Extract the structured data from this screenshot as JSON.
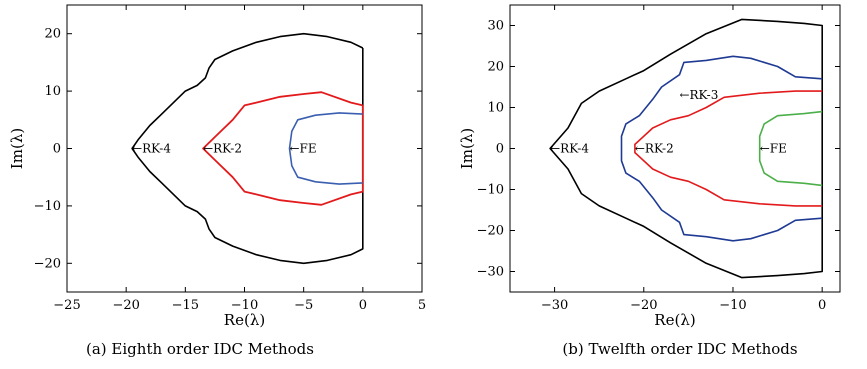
{
  "chart_data": [
    {
      "type": "line",
      "caption": "(a) Eighth order IDC Methods",
      "xlabel": "Re(λ)",
      "ylabel": "Im(λ)",
      "xlim": [
        -25,
        5
      ],
      "ylim": [
        -25,
        25
      ],
      "xticks": [
        -25,
        -20,
        -15,
        -10,
        -5,
        0,
        5
      ],
      "yticks": [
        -20,
        -10,
        0,
        10,
        20
      ],
      "grid": false,
      "series": [
        {
          "name": "RK-4",
          "color": "#000000",
          "points": [
            [
              0,
              17.5
            ],
            [
              -1,
              18.5
            ],
            [
              -3,
              19.5
            ],
            [
              -5,
              20
            ],
            [
              -7,
              19.5
            ],
            [
              -9,
              18.5
            ],
            [
              -11,
              17
            ],
            [
              -12.5,
              15.5
            ],
            [
              -13,
              14
            ],
            [
              -13.3,
              12.3
            ],
            [
              -14,
              11
            ],
            [
              -15,
              10
            ],
            [
              -16,
              8
            ],
            [
              -17,
              6
            ],
            [
              -18,
              4
            ],
            [
              -19,
              1.5
            ],
            [
              -19.5,
              0
            ],
            [
              -19,
              -1.5
            ],
            [
              -18,
              -4
            ],
            [
              -17,
              -6
            ],
            [
              -16,
              -8
            ],
            [
              -15,
              -10
            ],
            [
              -14,
              -11
            ],
            [
              -13.3,
              -12.3
            ],
            [
              -13,
              -14
            ],
            [
              -12.5,
              -15.5
            ],
            [
              -11,
              -17
            ],
            [
              -9,
              -18.5
            ],
            [
              -7,
              -19.5
            ],
            [
              -5,
              -20
            ],
            [
              -3,
              -19.5
            ],
            [
              -1,
              -18.5
            ],
            [
              0,
              -17.5
            ],
            [
              0,
              17.5
            ]
          ]
        },
        {
          "name": "RK-2",
          "color": "#e31a1c",
          "points": [
            [
              0,
              7.5
            ],
            [
              -1,
              8
            ],
            [
              -3.5,
              9.8
            ],
            [
              -5,
              9.5
            ],
            [
              -7,
              9
            ],
            [
              -9,
              8
            ],
            [
              -10,
              7.5
            ],
            [
              -11,
              5
            ],
            [
              -12.5,
              2
            ],
            [
              -13.5,
              0
            ],
            [
              -12.5,
              -2
            ],
            [
              -11,
              -5
            ],
            [
              -10,
              -7.5
            ],
            [
              -9,
              -8
            ],
            [
              -7,
              -9
            ],
            [
              -5,
              -9.5
            ],
            [
              -3.5,
              -9.8
            ],
            [
              -1,
              -8
            ],
            [
              0,
              -7.5
            ],
            [
              0,
              7.5
            ]
          ]
        },
        {
          "name": "FE",
          "color": "#3a5fb0",
          "points": [
            [
              0,
              6
            ],
            [
              -2,
              6.2
            ],
            [
              -4,
              5.8
            ],
            [
              -5.5,
              5
            ],
            [
              -6,
              3
            ],
            [
              -6.2,
              0
            ],
            [
              -6,
              -3
            ],
            [
              -5.5,
              -5
            ],
            [
              -4,
              -5.8
            ],
            [
              -2,
              -6.2
            ],
            [
              0,
              -6
            ]
          ]
        }
      ],
      "annotations": [
        {
          "text": "←RK-4",
          "x": -19.5,
          "y": 0
        },
        {
          "text": "←RK-2",
          "x": -13.5,
          "y": 0
        },
        {
          "text": "←FE",
          "x": -6.2,
          "y": 0
        }
      ]
    },
    {
      "type": "line",
      "caption": "(b) Twelfth order IDC Methods",
      "xlabel": "Re(λ)",
      "ylabel": "Im(λ)",
      "xlim": [
        -35,
        2
      ],
      "ylim": [
        -35,
        35
      ],
      "xticks": [
        -30,
        -20,
        -10,
        0
      ],
      "yticks": [
        -30,
        -20,
        -10,
        0,
        10,
        20,
        30
      ],
      "grid": false,
      "series": [
        {
          "name": "RK-4",
          "color": "#000000",
          "points": [
            [
              0,
              24
            ],
            [
              0,
              30
            ],
            [
              -2,
              30.5
            ],
            [
              -5,
              31
            ],
            [
              -9,
              31.5
            ],
            [
              -13,
              28
            ],
            [
              -17,
              23
            ],
            [
              -20,
              19
            ],
            [
              -22,
              17
            ],
            [
              -25,
              14
            ],
            [
              -27,
              11
            ],
            [
              -28.5,
              5
            ],
            [
              -30.5,
              0
            ],
            [
              -28.5,
              -5
            ],
            [
              -27,
              -11
            ],
            [
              -25,
              -14
            ],
            [
              -22,
              -17
            ],
            [
              -20,
              -19
            ],
            [
              -17,
              -23
            ],
            [
              -13,
              -28
            ],
            [
              -9,
              -31.5
            ],
            [
              -5,
              -31
            ],
            [
              -2,
              -30.5
            ],
            [
              0,
              -30
            ],
            [
              0,
              -24
            ],
            [
              0,
              24
            ]
          ]
        },
        {
          "name": "RK-3",
          "color": "#1f3a93",
          "points": [
            [
              0,
              17
            ],
            [
              -3,
              17.5
            ],
            [
              -5,
              20
            ],
            [
              -8,
              22
            ],
            [
              -10,
              22.5
            ],
            [
              -13,
              21.5
            ],
            [
              -15.5,
              21
            ],
            [
              -16,
              18
            ],
            [
              -18,
              15
            ],
            [
              -19,
              12
            ],
            [
              -20.5,
              8
            ],
            [
              -22,
              6
            ],
            [
              -22.5,
              3
            ],
            [
              -22.5,
              0
            ],
            [
              -22.5,
              -3
            ],
            [
              -22,
              -6
            ],
            [
              -20.5,
              -8
            ],
            [
              -19,
              -12
            ],
            [
              -18,
              -15
            ],
            [
              -16,
              -18
            ],
            [
              -15.5,
              -21
            ],
            [
              -13,
              -21.5
            ],
            [
              -10,
              -22.5
            ],
            [
              -8,
              -22
            ],
            [
              -5,
              -20
            ],
            [
              -3,
              -17.5
            ],
            [
              0,
              -17
            ]
          ]
        },
        {
          "name": "RK-2",
          "color": "#e31a1c",
          "points": [
            [
              0,
              14
            ],
            [
              -3,
              14
            ],
            [
              -7,
              13.5
            ],
            [
              -11,
              12.5
            ],
            [
              -13,
              10
            ],
            [
              -15,
              8
            ],
            [
              -17,
              7
            ],
            [
              -19,
              5
            ],
            [
              -21,
              1
            ],
            [
              -21,
              0
            ],
            [
              -21,
              -1
            ],
            [
              -19,
              -5
            ],
            [
              -17,
              -7
            ],
            [
              -15,
              -8
            ],
            [
              -13,
              -10
            ],
            [
              -11,
              -12.5
            ],
            [
              -7,
              -13.5
            ],
            [
              -3,
              -14
            ],
            [
              0,
              -14
            ]
          ]
        },
        {
          "name": "FE",
          "color": "#4daf4a",
          "points": [
            [
              0,
              9
            ],
            [
              -2,
              8.5
            ],
            [
              -5,
              8
            ],
            [
              -6.5,
              6
            ],
            [
              -7,
              3
            ],
            [
              -7,
              0
            ],
            [
              -7,
              -3
            ],
            [
              -6.5,
              -6
            ],
            [
              -5,
              -8
            ],
            [
              -2,
              -8.5
            ],
            [
              0,
              -9
            ]
          ]
        }
      ],
      "annotations": [
        {
          "text": "←RK-4",
          "x": -30.5,
          "y": 0
        },
        {
          "text": "←RK-3",
          "x": -16,
          "y": 13
        },
        {
          "text": "←RK-2",
          "x": -21,
          "y": 0
        },
        {
          "text": "←FE",
          "x": -7,
          "y": 0
        }
      ]
    }
  ]
}
